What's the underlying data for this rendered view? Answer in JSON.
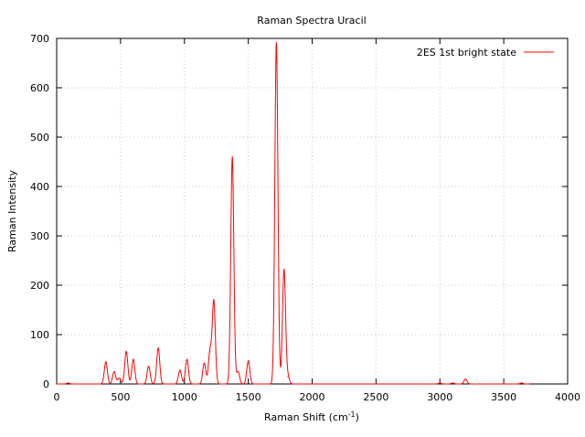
{
  "chart_data": {
    "type": "line",
    "title": "Raman Spectra Uracil",
    "xlabel": "Raman Shift (cm",
    "xlabel_sup": "-1",
    "xlabel_suffix": ")",
    "ylabel": "Raman Intensity",
    "xlim": [
      0,
      4000
    ],
    "ylim": [
      0,
      700
    ],
    "xticks": [
      0,
      500,
      1000,
      1500,
      2000,
      2500,
      3000,
      3500,
      4000
    ],
    "yticks": [
      0,
      100,
      200,
      300,
      400,
      500,
      600,
      700
    ],
    "grid": true,
    "legend": "top-right",
    "series": [
      {
        "name": "2ES 1st bright state",
        "color": "#ff0000",
        "peaks": [
          {
            "x": 90,
            "y": 2
          },
          {
            "x": 385,
            "y": 45
          },
          {
            "x": 450,
            "y": 25
          },
          {
            "x": 490,
            "y": 12
          },
          {
            "x": 545,
            "y": 66
          },
          {
            "x": 600,
            "y": 50
          },
          {
            "x": 720,
            "y": 36
          },
          {
            "x": 795,
            "y": 73
          },
          {
            "x": 965,
            "y": 28
          },
          {
            "x": 1020,
            "y": 50
          },
          {
            "x": 1155,
            "y": 42
          },
          {
            "x": 1200,
            "y": 65
          },
          {
            "x": 1230,
            "y": 168
          },
          {
            "x": 1375,
            "y": 460
          },
          {
            "x": 1420,
            "y": 25
          },
          {
            "x": 1500,
            "y": 47
          },
          {
            "x": 1720,
            "y": 692
          },
          {
            "x": 1780,
            "y": 232
          },
          {
            "x": 1810,
            "y": 15
          },
          {
            "x": 3000,
            "y": 2
          },
          {
            "x": 3100,
            "y": 2
          },
          {
            "x": 3200,
            "y": 10
          },
          {
            "x": 3640,
            "y": 2
          }
        ]
      }
    ]
  }
}
